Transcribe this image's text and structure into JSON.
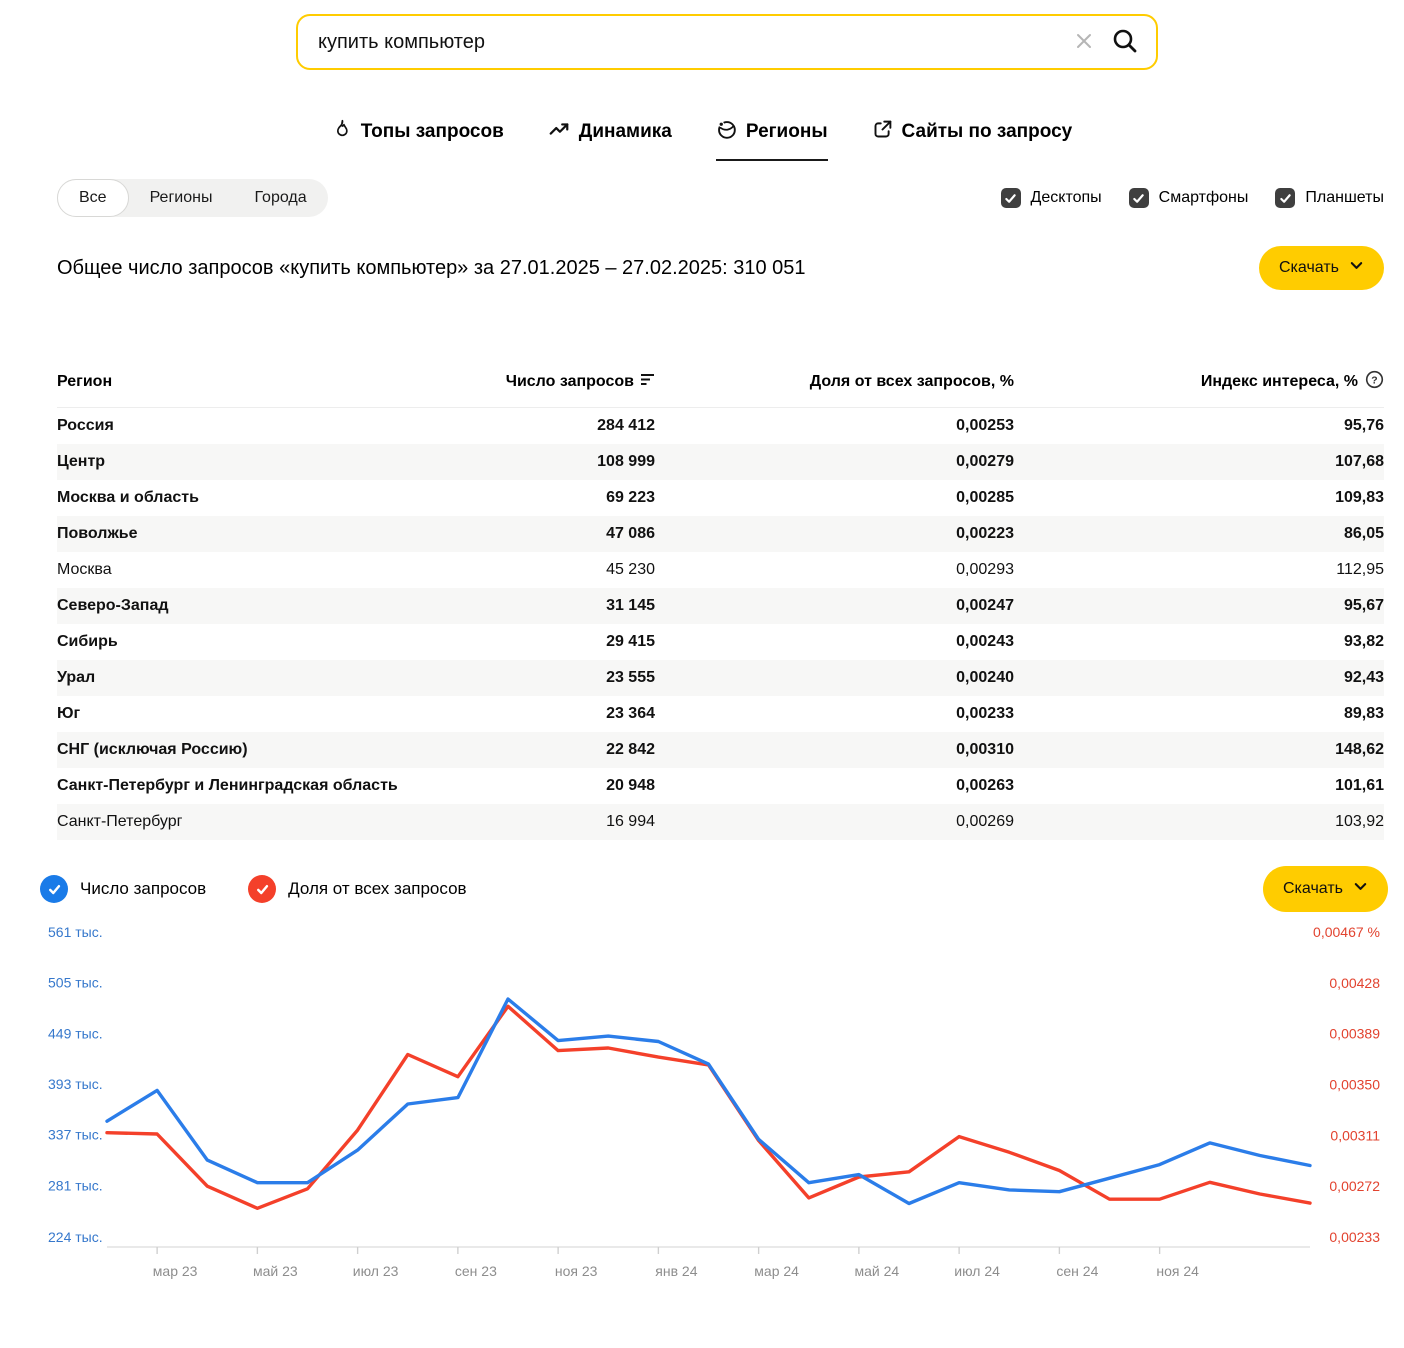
{
  "search": {
    "value": "купить компьютер"
  },
  "tabs": [
    {
      "label": "Топы запросов",
      "icon": "flame-icon",
      "active": false
    },
    {
      "label": "Динамика",
      "icon": "trend-icon",
      "active": false
    },
    {
      "label": "Регионы",
      "icon": "globe-icon",
      "active": true
    },
    {
      "label": "Сайты по запросу",
      "icon": "external-link-icon",
      "active": false
    }
  ],
  "filters": {
    "segments": [
      "Все",
      "Регионы",
      "Города"
    ],
    "selected": "Все",
    "devices": [
      {
        "label": "Десктопы",
        "checked": true
      },
      {
        "label": "Смартфоны",
        "checked": true
      },
      {
        "label": "Планшеты",
        "checked": true
      }
    ]
  },
  "summary": {
    "title": "Общее число запросов «купить компьютер» за 27.01.2025 – 27.02.2025: 310 051"
  },
  "download_label": "Скачать",
  "table": {
    "columns": [
      "Регион",
      "Число запросов",
      "Доля от всех запросов, %",
      "Индекс интереса, %"
    ],
    "rows": [
      {
        "region": "Россия",
        "queries": "284 412",
        "share": "0,00253",
        "index": "95,76",
        "bold": true
      },
      {
        "region": "Центр",
        "queries": "108 999",
        "share": "0,00279",
        "index": "107,68",
        "bold": true
      },
      {
        "region": "Москва и область",
        "queries": "69 223",
        "share": "0,00285",
        "index": "109,83",
        "bold": true
      },
      {
        "region": "Поволжье",
        "queries": "47 086",
        "share": "0,00223",
        "index": "86,05",
        "bold": true
      },
      {
        "region": "Москва",
        "queries": "45 230",
        "share": "0,00293",
        "index": "112,95",
        "bold": false
      },
      {
        "region": "Северо-Запад",
        "queries": "31 145",
        "share": "0,00247",
        "index": "95,67",
        "bold": true
      },
      {
        "region": "Сибирь",
        "queries": "29 415",
        "share": "0,00243",
        "index": "93,82",
        "bold": true
      },
      {
        "region": "Урал",
        "queries": "23 555",
        "share": "0,00240",
        "index": "92,43",
        "bold": true
      },
      {
        "region": "Юг",
        "queries": "23 364",
        "share": "0,00233",
        "index": "89,83",
        "bold": true
      },
      {
        "region": "СНГ (исключая Россию)",
        "queries": "22 842",
        "share": "0,00310",
        "index": "148,62",
        "bold": true
      },
      {
        "region": "Санкт-Петербург и Ленинградская область",
        "queries": "20 948",
        "share": "0,00263",
        "index": "101,61",
        "bold": true
      },
      {
        "region": "Санкт-Петербург",
        "queries": "16 994",
        "share": "0,00269",
        "index": "103,92",
        "bold": false
      }
    ]
  },
  "legend": [
    {
      "label": "Число запросов",
      "color": "#1a7be8"
    },
    {
      "label": "Доля от всех запросов",
      "color": "#f4402a"
    }
  ],
  "chart_data": {
    "type": "line",
    "x": [
      "фев 23",
      "мар 23",
      "апр 23",
      "май 23",
      "июн 23",
      "июл 23",
      "авг 23",
      "сен 23",
      "окт 23",
      "ноя 23",
      "дек 23",
      "янв 24",
      "фев 24",
      "мар 24",
      "апр 24",
      "май 24",
      "июн 24",
      "июл 24",
      "авг 24",
      "сен 24",
      "окт 24",
      "ноя 24",
      "дек 24",
      "янв 25",
      "фев 25"
    ],
    "x_tick_labels": [
      "мар 23",
      "май 23",
      "июл 23",
      "сен 23",
      "ноя 23",
      "янв 24",
      "мар 24",
      "май 24",
      "июл 24",
      "сен 24",
      "ноя 24"
    ],
    "series": [
      {
        "name": "Число запросов",
        "axis": "left",
        "unit": "тыс.",
        "color": "#2b7de9",
        "values": [
          352,
          386,
          309,
          284,
          284,
          320,
          371,
          378,
          487,
          441,
          446,
          440,
          415,
          332,
          284,
          293,
          261,
          284,
          276,
          274,
          289,
          304,
          328,
          314,
          303
        ]
      },
      {
        "name": "Доля от всех запросов",
        "axis": "right",
        "unit": "%",
        "color": "#f4402a",
        "values": [
          0.00313,
          0.00312,
          0.00272,
          0.00255,
          0.0027,
          0.00315,
          0.00373,
          0.00356,
          0.0041,
          0.00376,
          0.00378,
          0.00371,
          0.00365,
          0.00307,
          0.00263,
          0.00279,
          0.00283,
          0.0031,
          0.00298,
          0.00284,
          0.00262,
          0.00262,
          0.00275,
          0.00266,
          0.00259
        ]
      }
    ],
    "left_axis": {
      "range": [
        224,
        561
      ],
      "ticks": [
        561,
        505,
        449,
        393,
        337,
        281,
        224
      ],
      "labels": [
        "561 тыс.",
        "505 тыс.",
        "449 тыс.",
        "393 тыс.",
        "337 тыс.",
        "281 тыс.",
        "224 тыс."
      ]
    },
    "right_axis": {
      "range": [
        0.00233,
        0.00467
      ],
      "ticks": [
        0.00467,
        0.00428,
        0.00389,
        0.0035,
        0.00311,
        0.00272,
        0.00233
      ],
      "labels": [
        "0,00467 %",
        "0,00428",
        "0,00389",
        "0,00350",
        "0,00311",
        "0,00272",
        "0,00233"
      ]
    },
    "title": "",
    "xlabel": "",
    "ylabel": "",
    "grid": false,
    "legend_position": "top-left"
  }
}
